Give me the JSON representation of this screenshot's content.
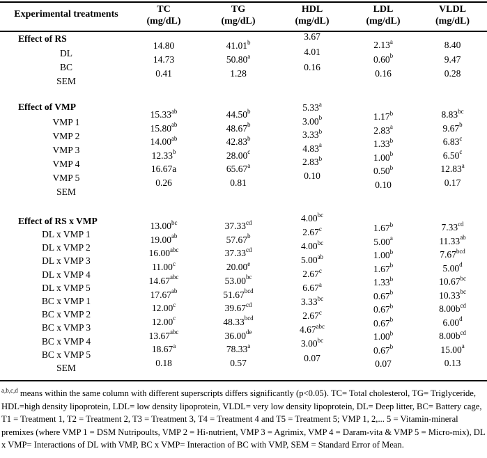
{
  "table": {
    "header": {
      "treatments": "Experimental treatments",
      "cols": [
        {
          "abbr": "TC",
          "unit": "(mg/dL)"
        },
        {
          "abbr": "TG",
          "unit": "(mg/dL)"
        },
        {
          "abbr": "HDL",
          "unit": "(mg/dL)"
        },
        {
          "abbr": "LDL",
          "unit": "(mg/dL)"
        },
        {
          "abbr": "VLDL",
          "unit": "(mg/dL)"
        }
      ]
    },
    "sections": [
      {
        "title": "Effect of RS",
        "rows": [
          "DL",
          "BC",
          "SEM"
        ],
        "tc": [
          {
            "v": "14.80",
            "s": ""
          },
          {
            "v": "14.73",
            "s": ""
          },
          {
            "v": "0.41",
            "s": ""
          }
        ],
        "tg": [
          {
            "v": "41.01",
            "s": "b"
          },
          {
            "v": "50.80",
            "s": "a"
          },
          {
            "v": "1.28",
            "s": ""
          }
        ],
        "hdl": [
          {
            "v": "3.67",
            "s": ""
          },
          {
            "v": "4.01",
            "s": ""
          },
          {
            "v": "0.16",
            "s": ""
          }
        ],
        "ldl": [
          {
            "v": "2.13",
            "s": "a"
          },
          {
            "v": "0.60",
            "s": "b"
          },
          {
            "v": "0.16",
            "s": ""
          }
        ],
        "vldl": [
          {
            "v": "8.40",
            "s": ""
          },
          {
            "v": "9.47",
            "s": ""
          },
          {
            "v": "0.28",
            "s": ""
          }
        ]
      },
      {
        "title": "Effect of VMP",
        "rows": [
          "VMP 1",
          "VMP 2",
          "VMP 3",
          "VMP 4",
          "VMP 5",
          "SEM"
        ],
        "tc": [
          {
            "v": "15.33",
            "s": "ab"
          },
          {
            "v": "15.80",
            "s": "ab"
          },
          {
            "v": "14.00",
            "s": "ab"
          },
          {
            "v": "12.33",
            "s": "b"
          },
          {
            "v": "16.67a",
            "s": ""
          },
          {
            "v": "0.26",
            "s": ""
          }
        ],
        "tg": [
          {
            "v": "44.50",
            "s": "b"
          },
          {
            "v": "48.67",
            "s": "b"
          },
          {
            "v": "42.83",
            "s": "b"
          },
          {
            "v": "28.00",
            "s": "c"
          },
          {
            "v": "65.67",
            "s": "a"
          },
          {
            "v": "0.81",
            "s": ""
          }
        ],
        "hdl": [
          {
            "v": "5.33",
            "s": "a"
          },
          {
            "v": "3.00",
            "s": "b"
          },
          {
            "v": "3.33",
            "s": "b"
          },
          {
            "v": "4.83",
            "s": "a"
          },
          {
            "v": "2.83",
            "s": "b"
          },
          {
            "v": "0.10",
            "s": ""
          }
        ],
        "ldl": [
          {
            "v": "1.17",
            "s": "b"
          },
          {
            "v": "2.83",
            "s": "a"
          },
          {
            "v": "1.33",
            "s": "b"
          },
          {
            "v": "1.00",
            "s": "b"
          },
          {
            "v": "0.50",
            "s": "b"
          },
          {
            "v": "0.10",
            "s": ""
          }
        ],
        "vldl": [
          {
            "v": "8.83",
            "s": "bc"
          },
          {
            "v": "9.67",
            "s": "b"
          },
          {
            "v": "6.83",
            "s": "c"
          },
          {
            "v": "6.50",
            "s": "c"
          },
          {
            "v": "12.83",
            "s": "a"
          },
          {
            "v": "0.17",
            "s": ""
          }
        ]
      },
      {
        "title": "Effect of RS x VMP",
        "rows": [
          "DL x VMP 1",
          "DL x VMP 2",
          "DL x VMP 3",
          "DL x VMP 4",
          "DL x VMP 5",
          "BC x VMP 1",
          "BC x VMP 2",
          "BC x VMP 3",
          "BC x VMP 4",
          "BC x VMP 5",
          "SEM"
        ],
        "tc": [
          {
            "v": "13.00",
            "s": "bc"
          },
          {
            "v": "19.00",
            "s": "ab"
          },
          {
            "v": "16.00",
            "s": "abc"
          },
          {
            "v": "11.00",
            "s": "c"
          },
          {
            "v": "14.67",
            "s": "abc"
          },
          {
            "v": "17.67",
            "s": "ab"
          },
          {
            "v": "12.00",
            "s": "c"
          },
          {
            "v": "12.00",
            "s": "c"
          },
          {
            "v": "13.67",
            "s": "abc"
          },
          {
            "v": "18.67",
            "s": "a"
          },
          {
            "v": "0.18",
            "s": ""
          }
        ],
        "tg": [
          {
            "v": "37.33",
            "s": "cd"
          },
          {
            "v": "57.67",
            "s": "b"
          },
          {
            "v": "37.33",
            "s": "cd"
          },
          {
            "v": "20.00",
            "s": "e"
          },
          {
            "v": "53.00",
            "s": "bc"
          },
          {
            "v": "51.67",
            "s": "bcd"
          },
          {
            "v": "39.67",
            "s": "cd"
          },
          {
            "v": "48.33",
            "s": "bcd"
          },
          {
            "v": "36.00",
            "s": "de"
          },
          {
            "v": "78.33",
            "s": "a"
          },
          {
            "v": "0.57",
            "s": ""
          }
        ],
        "hdl": [
          {
            "v": "4.00",
            "s": "bc"
          },
          {
            "v": "2.67",
            "s": "c"
          },
          {
            "v": "4.00",
            "s": "bc"
          },
          {
            "v": "5.00",
            "s": "ab"
          },
          {
            "v": "2.67",
            "s": "c"
          },
          {
            "v": "6.67",
            "s": "a"
          },
          {
            "v": "3.33",
            "s": "bc"
          },
          {
            "v": "2.67",
            "s": "c"
          },
          {
            "v": "4.67",
            "s": "abc"
          },
          {
            "v": "3.00",
            "s": "bc"
          },
          {
            "v": "0.07",
            "s": ""
          }
        ],
        "ldl": [
          {
            "v": "1.67",
            "s": "b"
          },
          {
            "v": "5.00",
            "s": "a"
          },
          {
            "v": "1.00",
            "s": "b"
          },
          {
            "v": "1.67",
            "s": "b"
          },
          {
            "v": "1.33",
            "s": "b"
          },
          {
            "v": "0.67",
            "s": "b"
          },
          {
            "v": "0.67",
            "s": "b"
          },
          {
            "v": "0.67",
            "s": "b"
          },
          {
            "v": "1.00",
            "s": "b"
          },
          {
            "v": "0.67",
            "s": "b"
          },
          {
            "v": "0.07",
            "s": ""
          }
        ],
        "vldl": [
          {
            "v": "7.33",
            "s": "cd"
          },
          {
            "v": "11.33",
            "s": "ab"
          },
          {
            "v": "7.67",
            "s": "bcd"
          },
          {
            "v": "5.00",
            "s": "d"
          },
          {
            "v": "10.67",
            "s": "bc"
          },
          {
            "v": "10.33",
            "s": "bc"
          },
          {
            "v": "8.00b",
            "s": "cd"
          },
          {
            "v": "6.00",
            "s": "d"
          },
          {
            "v": "8.00b",
            "s": "cd"
          },
          {
            "v": "15.00",
            "s": "a"
          },
          {
            "v": "0.13",
            "s": ""
          }
        ]
      }
    ]
  },
  "footnote": {
    "sup": "a,b,c,d",
    "text": " means within the same column with different superscripts differs significantly (p<0.05). TC= Total cholesterol, TG= Triglyceride, HDL=high density lipoprotein, LDL= low density lipoprotein, VLDL= very low density lipoprotein, DL= Deep litter, BC= Battery cage, T1 = Treatment 1, T2 = Treatment 2, T3 = Treatment 3, T4 = Treatment 4 and T5 = Treatment 5; VMP 1, 2,... 5 = Vitamin-mineral premixes (where VMP 1 = DSM Nutripoults, VMP 2 = Hi-nutrient, VMP 3 = Agrimix, VMP 4 = Daram-vita & VMP 5 = Micro-mix), DL x VMP= Interactions of DL with VMP, BC x VMP= Interaction of BC with VMP, SEM = Standard Error of Mean."
  }
}
